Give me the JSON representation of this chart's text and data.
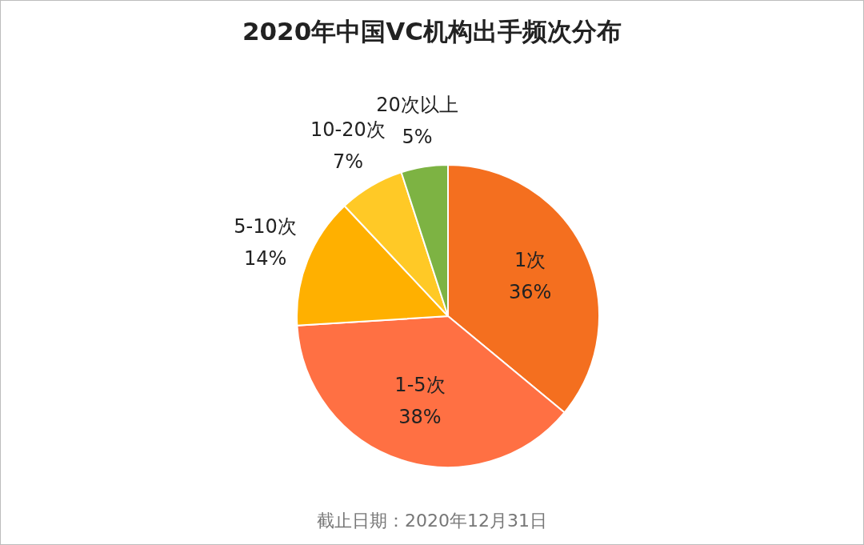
{
  "chart_data": {
    "type": "pie",
    "title": "2020年中国VC机构出手频次分布",
    "categories": [
      "1次",
      "1-5次",
      "5-10次",
      "10-20次",
      "20次以上"
    ],
    "values": [
      36,
      38,
      14,
      7,
      5
    ],
    "colors": [
      "#f46f1f",
      "#ff7043",
      "#ffb000",
      "#ffc926",
      "#7db343"
    ],
    "value_labels": [
      "36%",
      "38%",
      "14%",
      "7%",
      "5%"
    ],
    "legend": false,
    "annotations": [
      "截止日期：2020年12月31日"
    ]
  }
}
